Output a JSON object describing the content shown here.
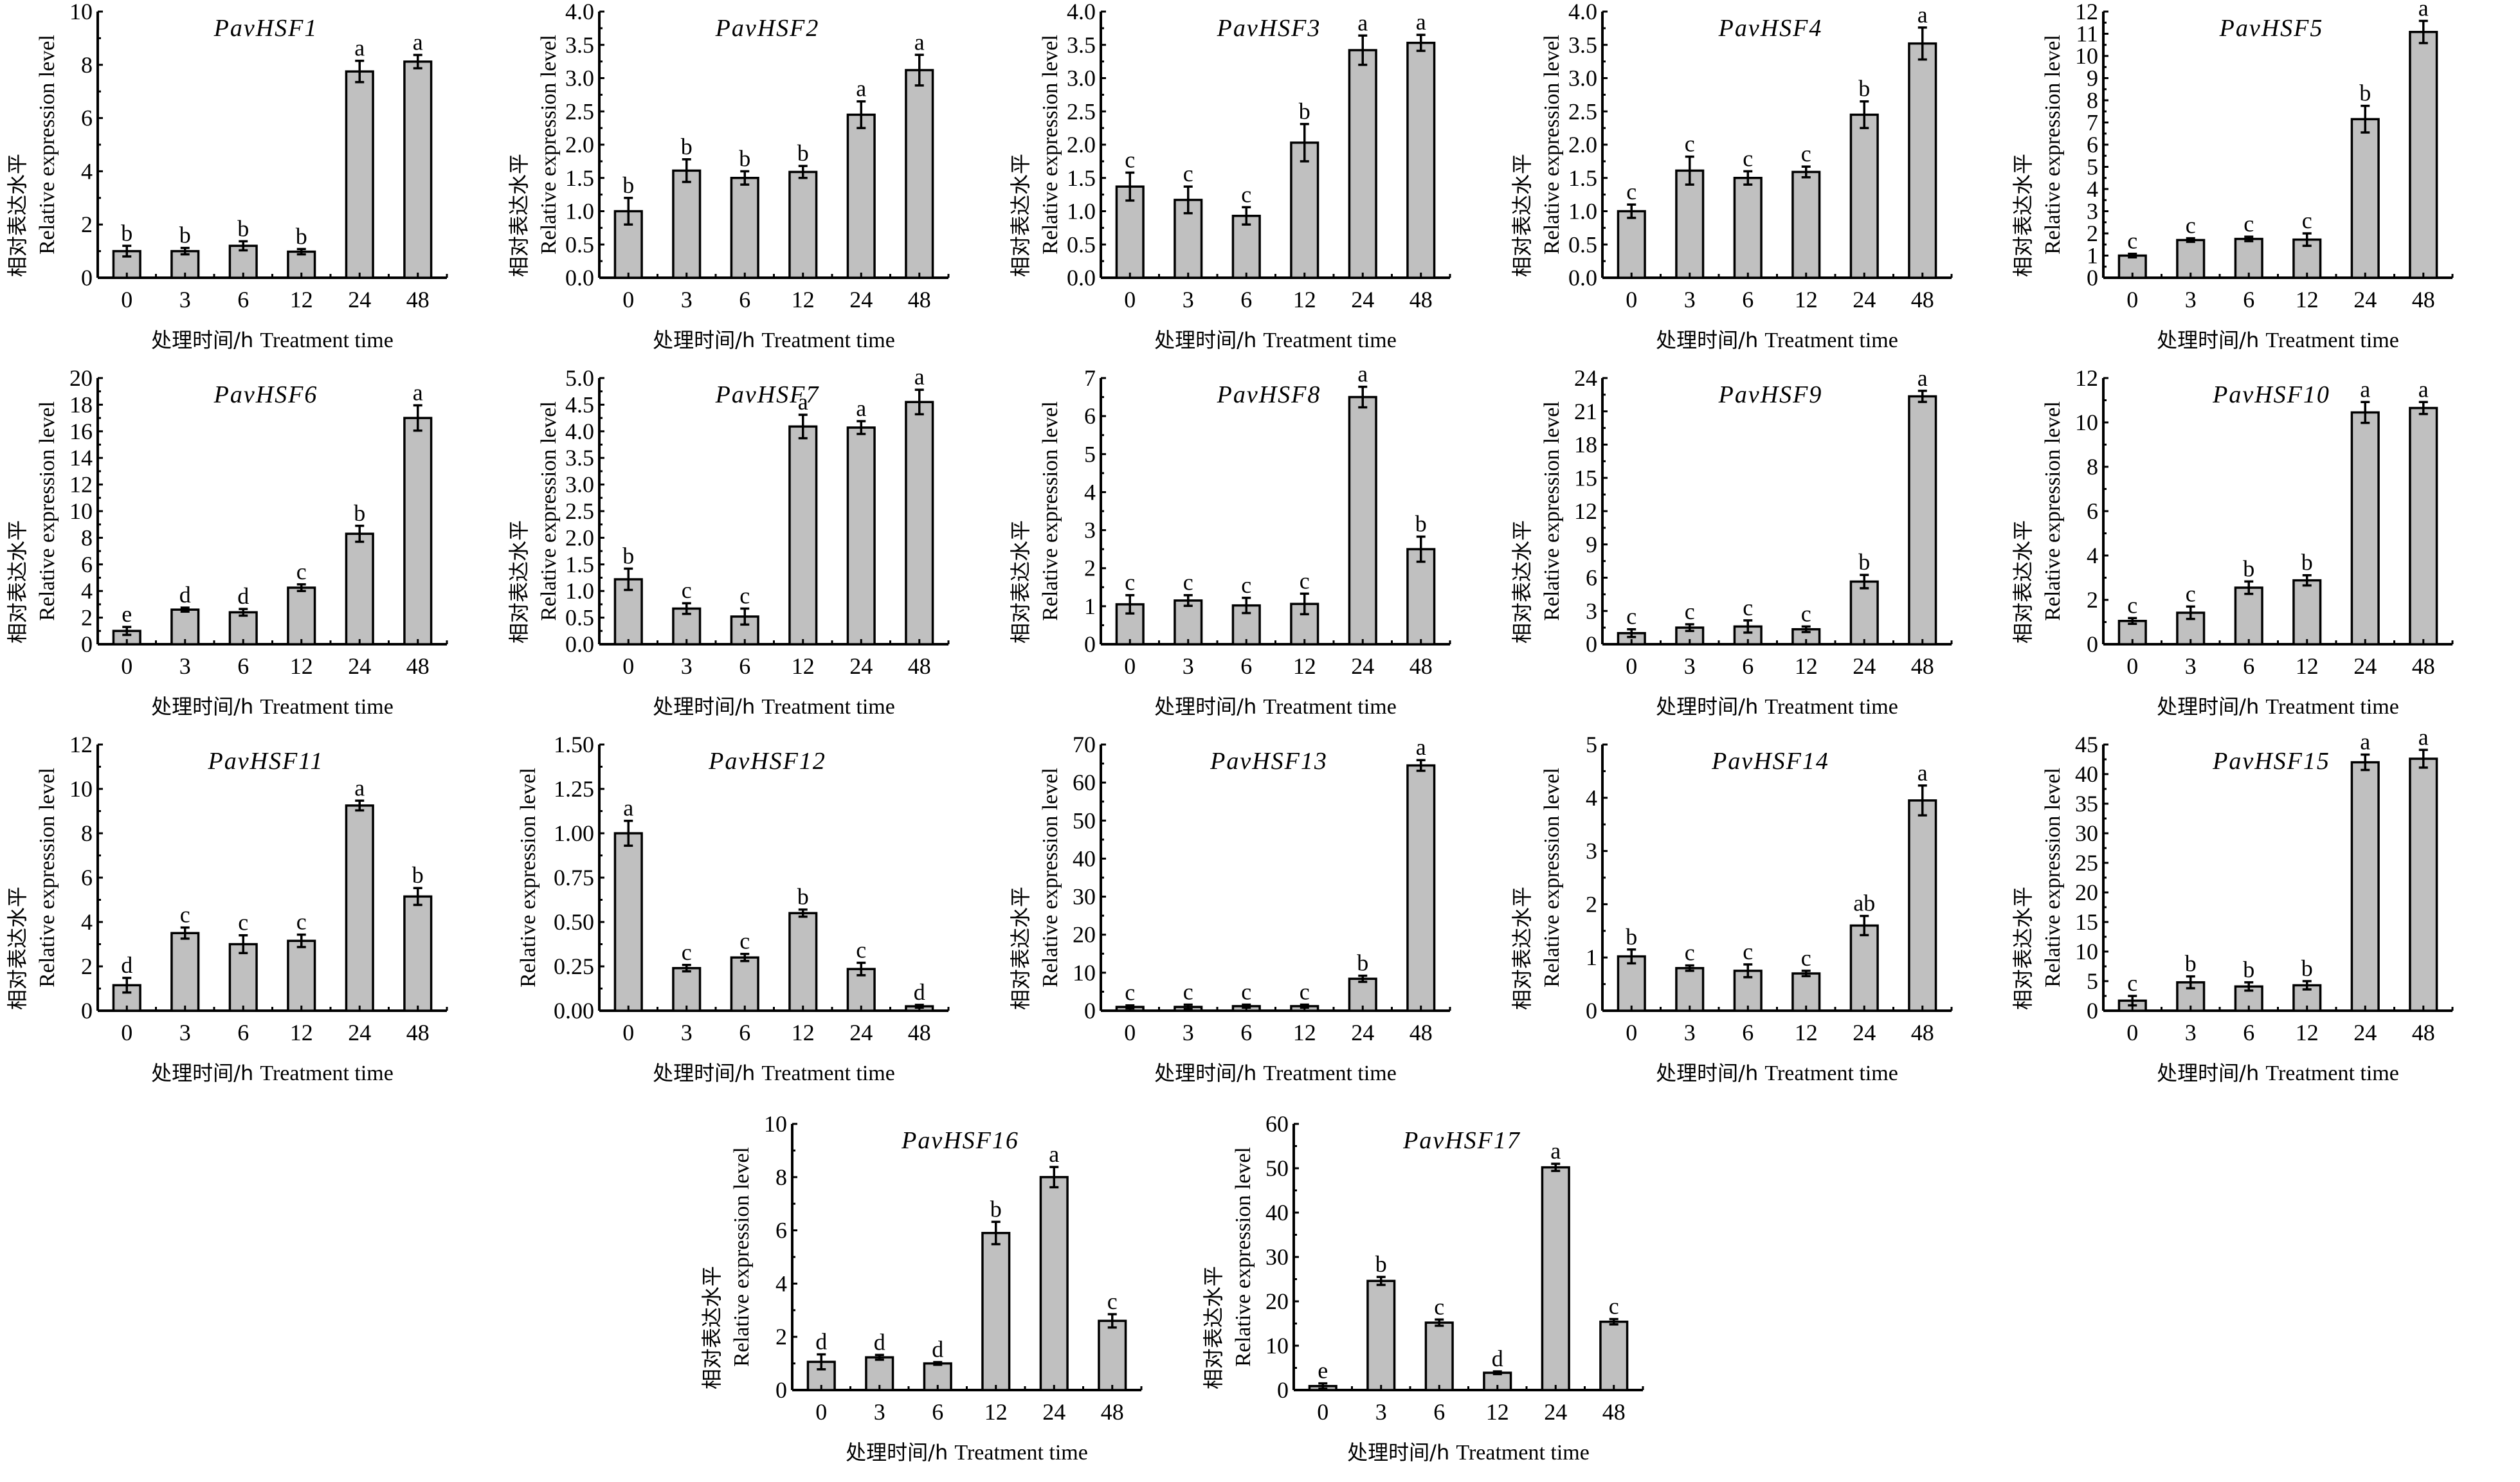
{
  "figure": {
    "common": {
      "categories": [
        "0",
        "3",
        "6",
        "12",
        "24",
        "48"
      ],
      "xlabel_cn": "处理时间/h",
      "xlabel_en": "Treatment time",
      "ylabel_cn": "相对表达水平",
      "ylabel_en": "Relative expression level",
      "bar_color": "#c0c0c0",
      "edge_color": "#000000"
    }
  },
  "chart_data": [
    {
      "type": "bar",
      "title": "PavHSF1",
      "categories": [
        "0",
        "3",
        "6",
        "12",
        "24",
        "48"
      ],
      "values": [
        1.0,
        1.0,
        1.2,
        0.98,
        7.75,
        8.12
      ],
      "errors": [
        0.2,
        0.12,
        0.17,
        0.1,
        0.4,
        0.25
      ],
      "letters": [
        "b",
        "b",
        "b",
        "b",
        "a",
        "a"
      ],
      "ylim": [
        0,
        10
      ],
      "yticks": [
        "0",
        "2",
        "4",
        "6",
        "8",
        "10"
      ],
      "xlabel": "处理时间/h Treatment time",
      "ylabel": "相对表达水平 Relative expression level"
    },
    {
      "type": "bar",
      "title": "PavHSF2",
      "categories": [
        "0",
        "3",
        "6",
        "12",
        "24",
        "48"
      ],
      "values": [
        1.0,
        1.61,
        1.5,
        1.59,
        2.45,
        3.12
      ],
      "errors": [
        0.2,
        0.17,
        0.1,
        0.09,
        0.2,
        0.23
      ],
      "letters": [
        "b",
        "b",
        "b",
        "b",
        "a",
        "a"
      ],
      "ylim": [
        0,
        4
      ],
      "yticks": [
        "0.0",
        "0.5",
        "1.0",
        "1.5",
        "2.0",
        "2.5",
        "3.0",
        "3.5",
        "4.0"
      ],
      "xlabel": "处理时间/h Treatment time",
      "ylabel": "相对表达水平 Relative expression level"
    },
    {
      "type": "bar",
      "title": "PavHSF3",
      "categories": [
        "0",
        "3",
        "6",
        "12",
        "24",
        "48"
      ],
      "values": [
        1.37,
        1.17,
        0.93,
        2.03,
        3.42,
        3.53
      ],
      "errors": [
        0.21,
        0.2,
        0.13,
        0.28,
        0.22,
        0.12
      ],
      "letters": [
        "c",
        "c",
        "c",
        "b",
        "a",
        "a"
      ],
      "ylim": [
        0,
        4
      ],
      "yticks": [
        "0.0",
        "0.5",
        "1.0",
        "1.5",
        "2.0",
        "2.5",
        "3.0",
        "3.5",
        "4.0"
      ],
      "xlabel": "处理时间/h Treatment time",
      "ylabel": "相对表达水平 Relative expression level"
    },
    {
      "type": "bar",
      "title": "PavHSF4",
      "categories": [
        "0",
        "3",
        "6",
        "12",
        "24",
        "48"
      ],
      "values": [
        1.0,
        1.61,
        1.5,
        1.59,
        2.45,
        3.52
      ],
      "errors": [
        0.1,
        0.21,
        0.1,
        0.08,
        0.2,
        0.24
      ],
      "letters": [
        "c",
        "c",
        "c",
        "c",
        "b",
        "a"
      ],
      "ylim": [
        0,
        4
      ],
      "yticks": [
        "0.0",
        "0.5",
        "1.0",
        "1.5",
        "2.0",
        "2.5",
        "3.0",
        "3.5",
        "4.0"
      ],
      "xlabel": "处理时间/h Treatment time",
      "ylabel": "相对表达水平 Relative expression level"
    },
    {
      "type": "bar",
      "title": "PavHSF5",
      "categories": [
        "0",
        "3",
        "6",
        "12",
        "24",
        "48"
      ],
      "values": [
        1.0,
        1.7,
        1.75,
        1.72,
        7.15,
        11.08
      ],
      "errors": [
        0.08,
        0.08,
        0.1,
        0.28,
        0.6,
        0.5
      ],
      "letters": [
        "c",
        "c",
        "c",
        "c",
        "b",
        "a"
      ],
      "ylim": [
        0,
        12
      ],
      "yticks": [
        "0",
        "1",
        "2",
        "3",
        "4",
        "5",
        "6",
        "7",
        "8",
        "9",
        "10",
        "11",
        "12"
      ],
      "xlabel": "处理时间/h Treatment time",
      "ylabel": "相对表达水平 Relative expression level"
    },
    {
      "type": "bar",
      "title": "PavHSF6",
      "categories": [
        "0",
        "3",
        "6",
        "12",
        "24",
        "48"
      ],
      "values": [
        1.0,
        2.6,
        2.4,
        4.25,
        8.3,
        17.0
      ],
      "errors": [
        0.3,
        0.15,
        0.25,
        0.25,
        0.6,
        0.95
      ],
      "letters": [
        "e",
        "d",
        "d",
        "c",
        "b",
        "a"
      ],
      "ylim": [
        0,
        20
      ],
      "yticks": [
        "0",
        "2",
        "4",
        "6",
        "8",
        "10",
        "12",
        "14",
        "16",
        "18",
        "20"
      ],
      "xlabel": "处理时间/h Treatment time",
      "ylabel": "相对表达水平 Relative expression level"
    },
    {
      "type": "bar",
      "title": "PavHSF7",
      "categories": [
        "0",
        "3",
        "6",
        "12",
        "24",
        "48"
      ],
      "values": [
        1.22,
        0.67,
        0.52,
        4.09,
        4.07,
        4.55
      ],
      "errors": [
        0.2,
        0.1,
        0.15,
        0.22,
        0.12,
        0.23
      ],
      "letters": [
        "b",
        "c",
        "c",
        "a",
        "a",
        "a"
      ],
      "ylim": [
        0,
        5
      ],
      "yticks": [
        "0.0",
        "0.5",
        "1.0",
        "1.5",
        "2.0",
        "2.5",
        "3.0",
        "3.5",
        "4.0",
        "4.5",
        "5.0"
      ],
      "xlabel": "处理时间/h Treatment time",
      "ylabel": "相对表达水平 Relative expression level"
    },
    {
      "type": "bar",
      "title": "PavHSF8",
      "categories": [
        "0",
        "3",
        "6",
        "12",
        "24",
        "48"
      ],
      "values": [
        1.05,
        1.15,
        1.02,
        1.06,
        6.5,
        2.5
      ],
      "errors": [
        0.24,
        0.14,
        0.2,
        0.27,
        0.27,
        0.33
      ],
      "letters": [
        "c",
        "c",
        "c",
        "c",
        "a",
        "b"
      ],
      "ylim": [
        0,
        7
      ],
      "yticks": [
        "0",
        "1",
        "2",
        "3",
        "4",
        "5",
        "6",
        "7"
      ],
      "xlabel": "处理时间/h Treatment time",
      "ylabel": "相对表达水平 Relative expression level"
    },
    {
      "type": "bar",
      "title": "PavHSF9",
      "categories": [
        "0",
        "3",
        "6",
        "12",
        "24",
        "48"
      ],
      "values": [
        1.0,
        1.5,
        1.6,
        1.35,
        5.65,
        22.35
      ],
      "errors": [
        0.35,
        0.3,
        0.55,
        0.25,
        0.6,
        0.5
      ],
      "letters": [
        "c",
        "c",
        "c",
        "c",
        "b",
        "a"
      ],
      "ylim": [
        0,
        24
      ],
      "yticks": [
        "0",
        "3",
        "6",
        "9",
        "12",
        "15",
        "18",
        "21",
        "24"
      ],
      "xlabel": "处理时间/h Treatment time",
      "ylabel": "相对表达水平 Relative expression level"
    },
    {
      "type": "bar",
      "title": "PavHSF10",
      "categories": [
        "0",
        "3",
        "6",
        "12",
        "24",
        "48"
      ],
      "values": [
        1.05,
        1.42,
        2.55,
        2.88,
        10.45,
        10.65
      ],
      "errors": [
        0.13,
        0.28,
        0.28,
        0.23,
        0.47,
        0.27
      ],
      "letters": [
        "c",
        "c",
        "b",
        "b",
        "a",
        "a"
      ],
      "ylim": [
        0,
        12
      ],
      "yticks": [
        "0",
        "2",
        "4",
        "6",
        "8",
        "10",
        "12"
      ],
      "xlabel": "处理时间/h Treatment time",
      "ylabel": "相对表达水平 Relative expression level"
    },
    {
      "type": "bar",
      "title": "PavHSF11",
      "categories": [
        "0",
        "3",
        "6",
        "12",
        "24",
        "48"
      ],
      "values": [
        1.15,
        3.5,
        3.0,
        3.15,
        9.25,
        5.15
      ],
      "errors": [
        0.33,
        0.25,
        0.4,
        0.28,
        0.22,
        0.38
      ],
      "letters": [
        "d",
        "c",
        "c",
        "c",
        "a",
        "b"
      ],
      "ylim": [
        0,
        12
      ],
      "yticks": [
        "0",
        "2",
        "4",
        "6",
        "8",
        "10",
        "12"
      ],
      "xlabel": "处理时间/h Treatment time",
      "ylabel": "相对表达水平 Relative expression level"
    },
    {
      "type": "bar",
      "title": "PavHSF12",
      "categories": [
        "0",
        "3",
        "6",
        "12",
        "24",
        "48"
      ],
      "values": [
        1.0,
        0.24,
        0.3,
        0.55,
        0.235,
        0.025
      ],
      "errors": [
        0.07,
        0.018,
        0.02,
        0.02,
        0.035,
        0.008
      ],
      "letters": [
        "a",
        "c",
        "c",
        "b",
        "c",
        "d"
      ],
      "ylim": [
        0,
        1.5
      ],
      "yticks": [
        "0.00",
        "0.25",
        "0.50",
        "0.75",
        "1.00",
        "1.25",
        "1.50"
      ],
      "xlabel": "处理时间/h Treatment time",
      "ylabel": "Relative expression level"
    },
    {
      "type": "bar",
      "title": "PavHSF13",
      "categories": [
        "0",
        "3",
        "6",
        "12",
        "24",
        "48"
      ],
      "values": [
        1.0,
        1.0,
        1.2,
        1.2,
        8.4,
        64.5
      ],
      "errors": [
        0.4,
        0.6,
        0.4,
        0.4,
        0.8,
        1.4
      ],
      "letters": [
        "c",
        "c",
        "c",
        "c",
        "b",
        "a"
      ],
      "ylim": [
        0,
        70
      ],
      "yticks": [
        "0",
        "10",
        "20",
        "30",
        "40",
        "50",
        "60",
        "70"
      ],
      "xlabel": "处理时间/h Treatment time",
      "ylabel": "相对表达水平 Relative expression level"
    },
    {
      "type": "bar",
      "title": "PavHSF14",
      "categories": [
        "0",
        "3",
        "6",
        "12",
        "24",
        "48"
      ],
      "values": [
        1.02,
        0.8,
        0.75,
        0.7,
        1.6,
        3.95
      ],
      "errors": [
        0.13,
        0.05,
        0.12,
        0.05,
        0.18,
        0.28
      ],
      "letters": [
        "b",
        "c",
        "c",
        "c",
        "ab",
        "a"
      ],
      "ylim": [
        0,
        5
      ],
      "yticks": [
        "0",
        "1",
        "2",
        "3",
        "4",
        "5"
      ],
      "xlabel": "处理时间/h Treatment time",
      "ylabel": "相对表达水平 Relative expression level"
    },
    {
      "type": "bar",
      "title": "PavHSF15",
      "categories": [
        "0",
        "3",
        "6",
        "12",
        "24",
        "48"
      ],
      "values": [
        1.7,
        4.8,
        4.1,
        4.3,
        42.0,
        42.6
      ],
      "errors": [
        0.8,
        1.0,
        0.7,
        0.7,
        1.3,
        1.5
      ],
      "letters": [
        "c",
        "b",
        "b",
        "b",
        "a",
        "a"
      ],
      "ylim": [
        0,
        45
      ],
      "yticks": [
        "0",
        "5",
        "10",
        "15",
        "20",
        "25",
        "30",
        "35",
        "40",
        "45"
      ],
      "xlabel": "处理时间/h Treatment time",
      "ylabel": "相对表达水平 Relative expression level"
    },
    {
      "type": "bar",
      "title": "PavHSF16",
      "categories": [
        "0",
        "3",
        "6",
        "12",
        "24",
        "48"
      ],
      "values": [
        1.06,
        1.23,
        1.0,
        5.9,
        8.0,
        2.6
      ],
      "errors": [
        0.28,
        0.09,
        0.05,
        0.42,
        0.38,
        0.25
      ],
      "letters": [
        "d",
        "d",
        "d",
        "b",
        "a",
        "c"
      ],
      "ylim": [
        0,
        10
      ],
      "yticks": [
        "0",
        "2",
        "4",
        "6",
        "8",
        "10"
      ],
      "xlabel": "处理时间/h Treatment time",
      "ylabel": "相对表达水平 Relative expression level"
    },
    {
      "type": "bar",
      "title": "PavHSF17",
      "categories": [
        "0",
        "3",
        "6",
        "12",
        "24",
        "48"
      ],
      "values": [
        0.9,
        24.6,
        15.2,
        3.9,
        50.2,
        15.4
      ],
      "errors": [
        0.6,
        0.9,
        0.7,
        0.3,
        0.8,
        0.6
      ],
      "letters": [
        "e",
        "b",
        "c",
        "d",
        "a",
        "c"
      ],
      "ylim": [
        0,
        60
      ],
      "yticks": [
        "0",
        "10",
        "20",
        "30",
        "40",
        "50",
        "60"
      ],
      "xlabel": "处理时间/h Treatment time",
      "ylabel": "相对表达水平 Relative expression level"
    }
  ]
}
